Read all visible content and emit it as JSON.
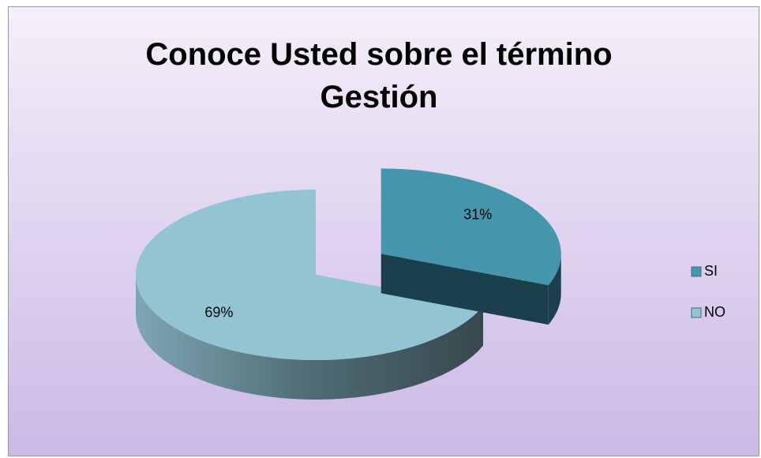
{
  "chart_data": {
    "type": "pie3d",
    "title": "Conoce Usted sobre el término Gestión",
    "categories": [
      "SI",
      "NO"
    ],
    "values": [
      31,
      69
    ],
    "value_labels": [
      "31%",
      "69%"
    ],
    "colors": [
      "#4596ad",
      "#93c4d4"
    ],
    "legend": "right"
  }
}
